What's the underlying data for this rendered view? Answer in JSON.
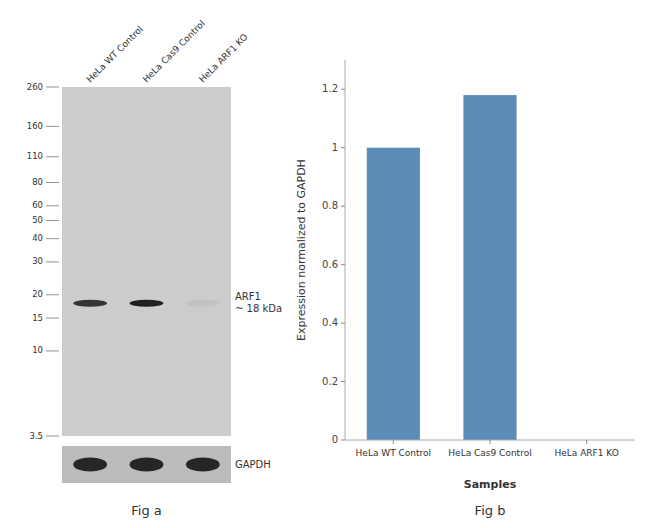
{
  "chart_data": [
    {
      "type": "blot",
      "title": "Fig a",
      "categories": [
        "HeLa WT Control",
        "HeLa Cas9 Control",
        "HeLa ARF1 KO"
      ],
      "log": "y",
      "ylim": [
        3.5,
        260
      ],
      "yticks": [
        260,
        160,
        110,
        80,
        60,
        50,
        40,
        30,
        20,
        15,
        10,
        3.5
      ],
      "annotations": [
        {
          "text": "ARF1\n~ 18 kDa",
          "y": 18
        },
        {
          "text": "GAPDH"
        }
      ]
    },
    {
      "type": "bar",
      "title": "Fig b",
      "categories": [
        "HeLa WT Control",
        "HeLa Cas9 Control",
        "HeLa ARF1 KO"
      ],
      "values": [
        1.0,
        1.18,
        0.0
      ],
      "color": "#5b8db8",
      "xlabel": "Samples",
      "ylabel": "Expression normalized to GAPDH",
      "ylim": [
        0,
        1.3
      ],
      "yticks": [
        0,
        0.2,
        0.4,
        0.6,
        0.8,
        1.0,
        1.2
      ],
      "grid": false
    }
  ]
}
